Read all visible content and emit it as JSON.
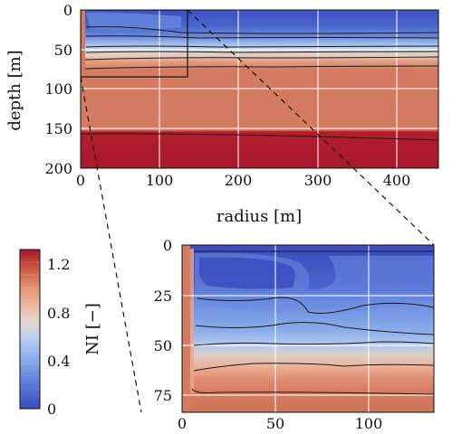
{
  "chart_data": [
    {
      "type": "heatmap",
      "panel": "main",
      "xlabel": "radius [m]",
      "ylabel": "depth [m]",
      "xlim": [
        0,
        480
      ],
      "ylim": [
        0,
        200
      ],
      "y_inverted": true,
      "xticks": [
        0,
        100,
        200,
        300,
        400
      ],
      "yticks": [
        0,
        50,
        100,
        150,
        200
      ],
      "grid": true,
      "inset_box": {
        "x": [
          0,
          135
        ],
        "depth": [
          0,
          85
        ]
      },
      "profile_depths": [
        0,
        2,
        35,
        42,
        55,
        65,
        75,
        85,
        120,
        160,
        200
      ],
      "profile_NI": [
        0.1,
        0.15,
        0.2,
        0.35,
        0.55,
        0.8,
        0.95,
        1.02,
        1.05,
        1.3,
        1.32
      ],
      "contour_lines_depth": [
        22,
        32,
        48,
        57,
        65,
        76,
        160
      ]
    },
    {
      "type": "heatmap",
      "panel": "inset",
      "xlim": [
        0,
        135
      ],
      "ylim": [
        0,
        85
      ],
      "y_inverted": true,
      "xticks": [
        0,
        50,
        100
      ],
      "yticks": [
        0,
        25,
        50,
        75
      ],
      "grid": true,
      "contour_lines_depth": [
        3,
        22,
        40,
        52,
        62,
        76
      ]
    }
  ],
  "colorbar": {
    "label": "NI [−]",
    "ticks": [
      "1.2",
      "0.8",
      "0.4",
      "0"
    ],
    "tick_values": [
      1.2,
      0.8,
      0.4,
      0
    ],
    "range": [
      0,
      1.32
    ],
    "colors": [
      "#3b4cc0",
      "#4f6fd0",
      "#6a8de0",
      "#8badeb",
      "#aac8f2",
      "#c9d8ea",
      "#e6d0c4",
      "#efb49a",
      "#e89478",
      "#d8705a",
      "#c44e3e",
      "#a8172c"
    ]
  }
}
